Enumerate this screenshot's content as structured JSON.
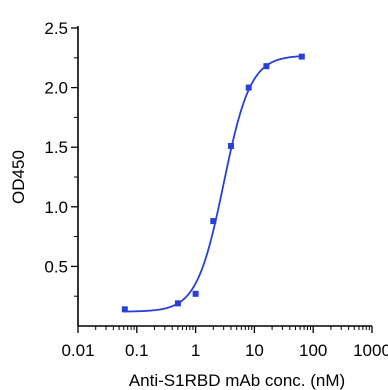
{
  "chart_data": {
    "type": "scatter",
    "xlabel": "Anti-S1RBD mAb conc. (nM)",
    "ylabel": "OD450",
    "xscale": "log",
    "xlim": [
      0.01,
      1000
    ],
    "ylim": [
      0,
      2.5
    ],
    "xticks": [
      "0.01",
      "0.1",
      "1",
      "10",
      "100",
      "1000"
    ],
    "yticks": [
      "0.5",
      "1.0",
      "1.5",
      "2.0",
      "2.5"
    ],
    "grid": false,
    "color": "#2b3fd6",
    "series": [
      {
        "x": [
          0.0625,
          0.5,
          1.0,
          2.0,
          4.0,
          8.0,
          16.0,
          64.0
        ],
        "y": [
          0.14,
          0.19,
          0.27,
          0.88,
          1.51,
          2.0,
          2.18,
          2.26
        ]
      }
    ],
    "fit_curve": true
  }
}
